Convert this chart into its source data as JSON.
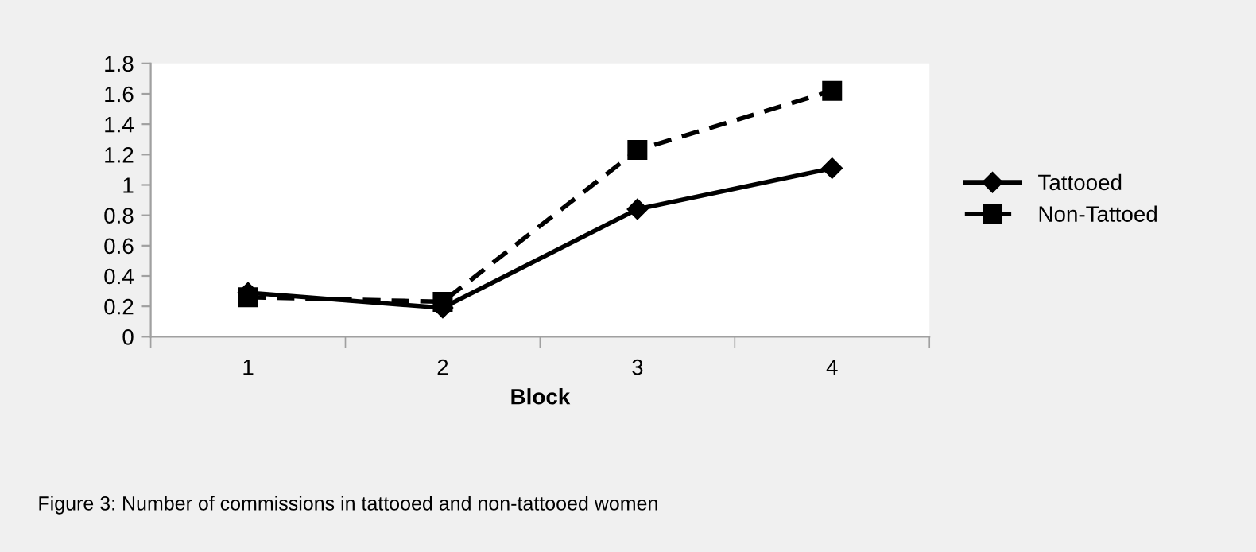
{
  "chart_data": {
    "type": "line",
    "xlabel": "Block",
    "categories": [
      "1",
      "2",
      "3",
      "4"
    ],
    "ylim": [
      0,
      1.8
    ],
    "yticks": [
      0,
      0.2,
      0.4,
      0.6,
      0.8,
      1,
      1.2,
      1.4,
      1.6,
      1.8
    ],
    "grid": false,
    "legend": "right",
    "series": [
      {
        "name": "Tattooed",
        "color": "#000000",
        "marker": "diamond",
        "line_style": "solid",
        "values": [
          0.29,
          0.19,
          0.84,
          1.11
        ]
      },
      {
        "name": "Non-Tattoed",
        "color": "#000000",
        "marker": "square",
        "line_style": "dashed",
        "values": [
          0.26,
          0.23,
          1.23,
          1.62
        ]
      }
    ],
    "annotations": [
      "Figure 3: Number of commissions in tattooed and non-tattooed women"
    ]
  }
}
